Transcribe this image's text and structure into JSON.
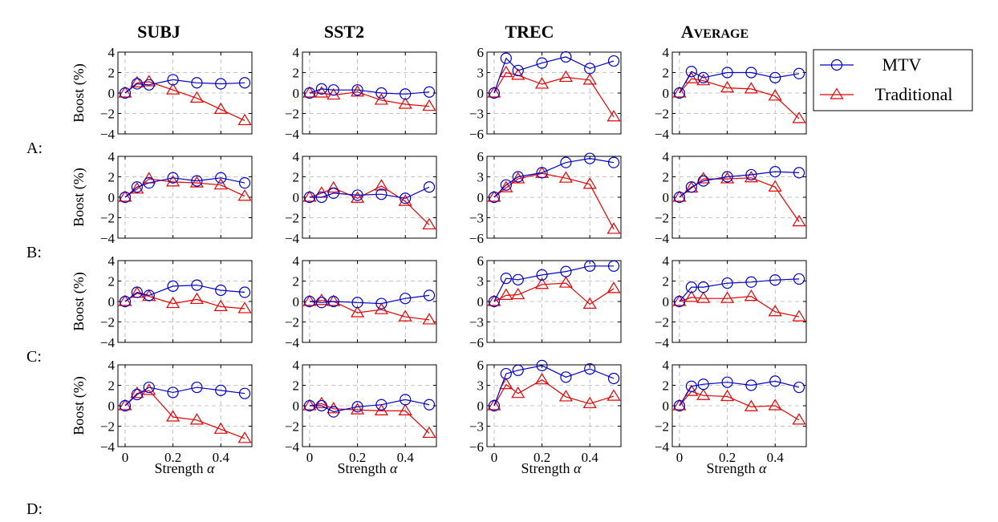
{
  "columns": [
    {
      "title": "SUBJ"
    },
    {
      "title": "SST2"
    },
    {
      "title": "TREC"
    },
    {
      "title_big": "A",
      "title_small": "VERAGE"
    }
  ],
  "rows": [
    "A:",
    "B:",
    "C:",
    "D:"
  ],
  "ylabel": "Boost (%)",
  "xlabel": "Strength",
  "xlabel_symbol": "α",
  "legend": {
    "mtv": "MTV",
    "traditional": "Traditional"
  },
  "colors": {
    "mtv": "#0000cc",
    "traditional": "#e60000",
    "grid": "#b3b3b3"
  },
  "chart_data": {
    "type": "line",
    "x": [
      0,
      0.05,
      0.1,
      0.2,
      0.3,
      0.4,
      0.5
    ],
    "xlim": [
      -0.03,
      0.53
    ],
    "xticks": [
      "0",
      "0.2",
      "0.4"
    ],
    "xtick_values": [
      0,
      0.2,
      0.4
    ],
    "marker": {
      "MTV": "circle",
      "Traditional": "triangle"
    },
    "grid": true,
    "legend_placement": "top-right",
    "panels": [
      {
        "row": "A",
        "dataset": "SUBJ",
        "ylim": [
          -4,
          4
        ],
        "yticks": [
          4,
          2,
          0,
          -2,
          -4
        ],
        "series": [
          {
            "name": "MTV",
            "values": [
              0,
              0.9,
              0.8,
              1.3,
              1.0,
              0.9,
              1.0
            ]
          },
          {
            "name": "Traditional",
            "values": [
              0,
              1.0,
              1.1,
              0.3,
              -0.5,
              -1.6,
              -2.7
            ]
          }
        ]
      },
      {
        "row": "A",
        "dataset": "SST2",
        "ylim": [
          -4,
          4
        ],
        "yticks": [
          4,
          2,
          0,
          -2,
          -4
        ],
        "series": [
          {
            "name": "MTV",
            "values": [
              0,
              0.4,
              0.3,
              0.3,
              0,
              -0.1,
              0.1
            ]
          },
          {
            "name": "Traditional",
            "values": [
              0,
              0,
              -0.2,
              0.1,
              -0.7,
              -1.1,
              -1.3
            ]
          }
        ]
      },
      {
        "row": "A",
        "dataset": "TREC",
        "ylim": [
          -6,
          6
        ],
        "yticks": [
          6,
          3,
          0,
          -3,
          -6
        ],
        "series": [
          {
            "name": "MTV",
            "values": [
              0,
              5.1,
              3.3,
              4.4,
              5.3,
              3.6,
              4.7
            ]
          },
          {
            "name": "Traditional",
            "values": [
              0,
              3.0,
              2.6,
              1.3,
              2.3,
              1.9,
              -3.5
            ]
          }
        ]
      },
      {
        "row": "A",
        "dataset": "AVERAGE",
        "ylim": [
          -4,
          4
        ],
        "yticks": [
          4,
          2,
          0,
          -2,
          -4
        ],
        "series": [
          {
            "name": "MTV",
            "values": [
              0,
              2.1,
              1.5,
              2.0,
              2.0,
              1.5,
              1.9
            ]
          },
          {
            "name": "Traditional",
            "values": [
              0,
              1.4,
              1.2,
              0.5,
              0.4,
              -0.3,
              -2.5
            ]
          }
        ]
      },
      {
        "row": "B",
        "dataset": "SUBJ",
        "ylim": [
          -4,
          4
        ],
        "yticks": [
          4,
          2,
          0,
          -2,
          -4
        ],
        "series": [
          {
            "name": "MTV",
            "values": [
              0,
              1.0,
              1.4,
              1.9,
              1.6,
              1.9,
              1.4
            ]
          },
          {
            "name": "Traditional",
            "values": [
              0,
              0.8,
              1.8,
              1.5,
              1.4,
              1.2,
              0.1
            ]
          }
        ]
      },
      {
        "row": "B",
        "dataset": "SST2",
        "ylim": [
          -4,
          4
        ],
        "yticks": [
          4,
          2,
          0,
          -2,
          -4
        ],
        "series": [
          {
            "name": "MTV",
            "values": [
              0,
              0,
              0.4,
              0.2,
              0.3,
              -0.1,
              1.0
            ]
          },
          {
            "name": "Traditional",
            "values": [
              0,
              0.4,
              0.9,
              -0.1,
              1.1,
              -0.4,
              -2.7
            ]
          }
        ]
      },
      {
        "row": "B",
        "dataset": "TREC",
        "ylim": [
          -6,
          6
        ],
        "yticks": [
          6,
          3,
          0,
          -3,
          -6
        ],
        "series": [
          {
            "name": "MTV",
            "values": [
              0,
              1.8,
              3.0,
              3.6,
              5.1,
              5.7,
              5.1
            ]
          },
          {
            "name": "Traditional",
            "values": [
              0,
              1.4,
              2.7,
              3.5,
              2.8,
              1.9,
              -4.7
            ]
          }
        ]
      },
      {
        "row": "B",
        "dataset": "AVERAGE",
        "ylim": [
          -4,
          4
        ],
        "yticks": [
          4,
          2,
          0,
          -2,
          -4
        ],
        "series": [
          {
            "name": "MTV",
            "values": [
              0,
              1.0,
              1.6,
              2.0,
              2.2,
              2.5,
              2.4
            ]
          },
          {
            "name": "Traditional",
            "values": [
              0,
              0.9,
              1.8,
              1.8,
              1.9,
              1.0,
              -2.4
            ]
          }
        ]
      },
      {
        "row": "C",
        "dataset": "SUBJ",
        "ylim": [
          -4,
          4
        ],
        "yticks": [
          4,
          2,
          0,
          -2,
          -4
        ],
        "series": [
          {
            "name": "MTV",
            "values": [
              0,
              0.9,
              0.6,
              1.5,
              1.6,
              1.1,
              0.9
            ]
          },
          {
            "name": "Traditional",
            "values": [
              0,
              0.8,
              0.5,
              -0.2,
              0.2,
              -0.5,
              -0.7
            ]
          }
        ]
      },
      {
        "row": "C",
        "dataset": "SST2",
        "ylim": [
          -4,
          4
        ],
        "yticks": [
          4,
          2,
          0,
          -2,
          -4
        ],
        "series": [
          {
            "name": "MTV",
            "values": [
              0,
              -0.1,
              0,
              -0.1,
              -0.2,
              0.3,
              0.6
            ]
          },
          {
            "name": "Traditional",
            "values": [
              0,
              0.1,
              0,
              -1.1,
              -0.8,
              -1.5,
              -1.8
            ]
          }
        ]
      },
      {
        "row": "C",
        "dataset": "TREC",
        "ylim": [
          -6,
          6
        ],
        "yticks": [
          6,
          3,
          0,
          -3,
          -6
        ],
        "series": [
          {
            "name": "MTV",
            "values": [
              0,
              3.4,
              3.2,
              3.9,
              4.4,
              5.2,
              5.2
            ]
          },
          {
            "name": "Traditional",
            "values": [
              0,
              0.9,
              1.0,
              2.5,
              2.7,
              -0.4,
              1.9
            ]
          }
        ]
      },
      {
        "row": "C",
        "dataset": "AVERAGE",
        "ylim": [
          -4,
          4
        ],
        "yticks": [
          4,
          2,
          0,
          -2,
          -4
        ],
        "series": [
          {
            "name": "MTV",
            "values": [
              0,
              1.4,
              1.4,
              1.8,
              1.9,
              2.1,
              2.2
            ]
          },
          {
            "name": "Traditional",
            "values": [
              0,
              0.4,
              0.3,
              0.3,
              0.5,
              -1.0,
              -1.5
            ]
          }
        ]
      },
      {
        "row": "D",
        "dataset": "SUBJ",
        "ylim": [
          -4,
          4
        ],
        "yticks": [
          4,
          2,
          0,
          -2,
          -4
        ],
        "series": [
          {
            "name": "MTV",
            "values": [
              0,
              1.1,
              1.8,
              1.3,
              1.8,
              1.5,
              1.2
            ]
          },
          {
            "name": "Traditional",
            "values": [
              0,
              1.2,
              1.5,
              -1.1,
              -1.4,
              -2.3,
              -3.2
            ]
          }
        ]
      },
      {
        "row": "D",
        "dataset": "SST2",
        "ylim": [
          -4,
          4
        ],
        "yticks": [
          4,
          2,
          0,
          -2,
          -4
        ],
        "series": [
          {
            "name": "MTV",
            "values": [
              0,
              0,
              -0.6,
              -0.1,
              0.1,
              0.6,
              0.1
            ]
          },
          {
            "name": "Traditional",
            "values": [
              0,
              0.2,
              -0.3,
              -0.4,
              -0.5,
              -0.5,
              -2.7
            ]
          }
        ]
      },
      {
        "row": "D",
        "dataset": "TREC",
        "ylim": [
          -6,
          6
        ],
        "yticks": [
          6,
          3,
          0,
          -3,
          -6
        ],
        "series": [
          {
            "name": "MTV",
            "values": [
              0,
              4.7,
              5.2,
              5.9,
              4.2,
              5.4,
              4.0
            ]
          },
          {
            "name": "Traditional",
            "values": [
              0,
              3.1,
              1.8,
              3.8,
              1.3,
              0.3,
              1.4
            ]
          }
        ]
      },
      {
        "row": "D",
        "dataset": "AVERAGE",
        "ylim": [
          -4,
          4
        ],
        "yticks": [
          4,
          2,
          0,
          -2,
          -4
        ],
        "series": [
          {
            "name": "MTV",
            "values": [
              0,
              1.9,
              2.1,
              2.3,
              2.0,
              2.4,
              1.8
            ]
          },
          {
            "name": "Traditional",
            "values": [
              0,
              1.4,
              1.0,
              0.9,
              -0.1,
              0,
              -1.4
            ]
          }
        ]
      }
    ]
  }
}
